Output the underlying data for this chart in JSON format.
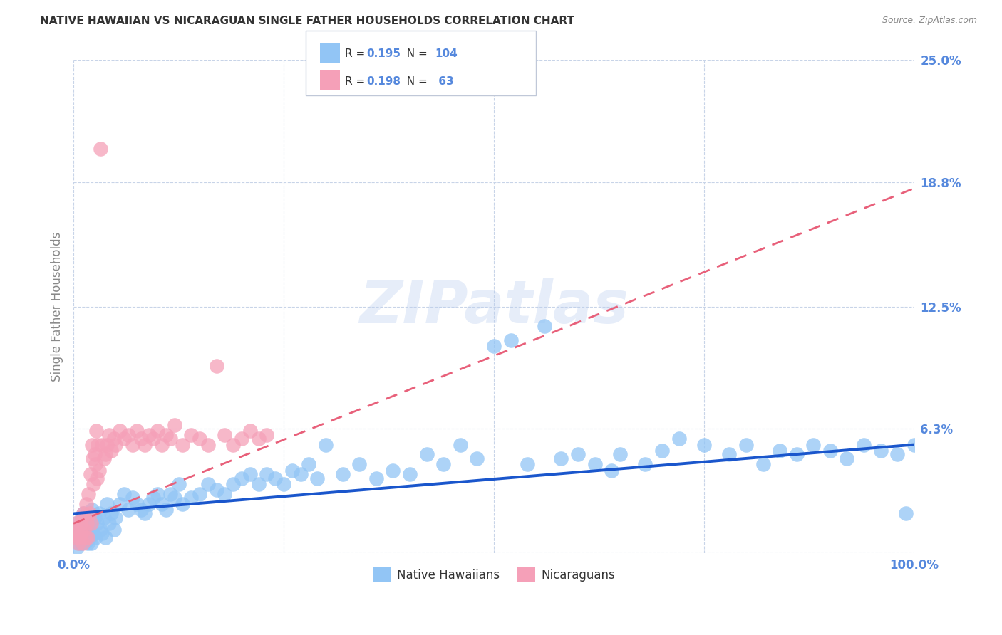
{
  "title": "NATIVE HAWAIIAN VS NICARAGUAN SINGLE FATHER HOUSEHOLDS CORRELATION CHART",
  "source": "Source: ZipAtlas.com",
  "ylabel": "Single Father Households",
  "watermark": "ZIPatlas",
  "xlim": [
    0.0,
    100.0
  ],
  "ylim": [
    0.0,
    25.0
  ],
  "ytick_vals": [
    0.0,
    6.3,
    12.5,
    18.8,
    25.0
  ],
  "ytick_labels": [
    "0%",
    "6.3%",
    "12.5%",
    "18.8%",
    "25.0%"
  ],
  "xtick_vals": [
    0.0,
    100.0
  ],
  "xtick_labels": [
    "0.0%",
    "100.0%"
  ],
  "native_hawaiian_color": "#92c5f5",
  "nicaraguan_color": "#f5a0b8",
  "trend_blue_color": "#1a56cc",
  "trend_pink_color": "#e8607a",
  "background_color": "#ffffff",
  "grid_color": "#c8d4e8",
  "title_color": "#333333",
  "source_color": "#888888",
  "axis_label_color": "#888888",
  "tick_color": "#5588dd",
  "native_hawaiian_x": [
    0.3,
    0.5,
    0.6,
    0.8,
    0.9,
    1.0,
    1.1,
    1.2,
    1.3,
    1.4,
    1.5,
    1.6,
    1.7,
    1.8,
    1.9,
    2.0,
    2.1,
    2.2,
    2.4,
    2.5,
    2.6,
    2.8,
    3.0,
    3.2,
    3.4,
    3.6,
    3.8,
    4.0,
    4.2,
    4.5,
    4.8,
    5.0,
    5.5,
    6.0,
    6.5,
    7.0,
    7.5,
    8.0,
    8.5,
    9.0,
    9.5,
    10.0,
    10.5,
    11.0,
    11.5,
    12.0,
    12.5,
    13.0,
    14.0,
    15.0,
    16.0,
    17.0,
    18.0,
    19.0,
    20.0,
    21.0,
    22.0,
    23.0,
    24.0,
    25.0,
    26.0,
    27.0,
    28.0,
    29.0,
    30.0,
    32.0,
    34.0,
    36.0,
    38.0,
    40.0,
    42.0,
    44.0,
    46.0,
    48.0,
    50.0,
    52.0,
    54.0,
    56.0,
    58.0,
    60.0,
    62.0,
    64.0,
    65.0,
    68.0,
    70.0,
    72.0,
    75.0,
    78.0,
    80.0,
    82.0,
    84.0,
    86.0,
    88.0,
    90.0,
    92.0,
    94.0,
    96.0,
    98.0,
    99.0,
    100.0,
    0.4,
    0.7,
    1.05,
    1.55
  ],
  "native_hawaiian_y": [
    1.5,
    1.0,
    0.8,
    1.2,
    0.5,
    1.8,
    1.0,
    2.0,
    0.8,
    1.5,
    0.6,
    1.0,
    0.5,
    1.2,
    0.8,
    1.5,
    0.5,
    2.2,
    1.0,
    1.8,
    0.8,
    1.5,
    2.0,
    1.2,
    1.0,
    1.8,
    0.8,
    2.5,
    1.5,
    2.0,
    1.2,
    1.8,
    2.5,
    3.0,
    2.2,
    2.8,
    2.5,
    2.2,
    2.0,
    2.5,
    2.8,
    3.0,
    2.5,
    2.2,
    3.0,
    2.8,
    3.5,
    2.5,
    2.8,
    3.0,
    3.5,
    3.2,
    3.0,
    3.5,
    3.8,
    4.0,
    3.5,
    4.0,
    3.8,
    3.5,
    4.2,
    4.0,
    4.5,
    3.8,
    5.5,
    4.0,
    4.5,
    3.8,
    4.2,
    4.0,
    5.0,
    4.5,
    5.5,
    4.8,
    10.5,
    10.8,
    4.5,
    11.5,
    4.8,
    5.0,
    4.5,
    4.2,
    5.0,
    4.5,
    5.2,
    5.8,
    5.5,
    5.0,
    5.5,
    4.5,
    5.2,
    5.0,
    5.5,
    5.2,
    4.8,
    5.5,
    5.2,
    5.0,
    2.0,
    5.5,
    0.3,
    0.5,
    0.8,
    0.6
  ],
  "nicaraguan_x": [
    0.2,
    0.3,
    0.4,
    0.5,
    0.6,
    0.7,
    0.8,
    0.9,
    1.0,
    1.1,
    1.2,
    1.3,
    1.4,
    1.5,
    1.6,
    1.7,
    1.8,
    1.9,
    2.0,
    2.1,
    2.2,
    2.3,
    2.4,
    2.5,
    2.6,
    2.7,
    2.8,
    2.9,
    3.0,
    3.2,
    3.4,
    3.6,
    3.8,
    4.0,
    4.2,
    4.5,
    4.8,
    5.0,
    5.5,
    6.0,
    6.5,
    7.0,
    7.5,
    8.0,
    8.5,
    9.0,
    9.5,
    10.0,
    10.5,
    11.0,
    11.5,
    12.0,
    13.0,
    14.0,
    15.0,
    16.0,
    17.0,
    18.0,
    19.0,
    20.0,
    21.0,
    22.0,
    23.0
  ],
  "nicaraguan_y": [
    1.5,
    0.8,
    1.2,
    1.0,
    0.5,
    0.8,
    1.5,
    1.0,
    1.8,
    0.5,
    2.0,
    1.2,
    0.8,
    2.5,
    1.5,
    0.8,
    3.0,
    2.0,
    4.0,
    1.5,
    5.5,
    4.8,
    3.5,
    5.0,
    4.5,
    6.2,
    3.8,
    5.5,
    4.2,
    20.5,
    5.5,
    4.8,
    5.0,
    5.5,
    6.0,
    5.2,
    5.8,
    5.5,
    6.2,
    5.8,
    6.0,
    5.5,
    6.2,
    5.8,
    5.5,
    6.0,
    5.8,
    6.2,
    5.5,
    6.0,
    5.8,
    6.5,
    5.5,
    6.0,
    5.8,
    5.5,
    9.5,
    6.0,
    5.5,
    5.8,
    6.2,
    5.8,
    6.0
  ],
  "legend_nh_r": "0.195",
  "legend_nh_n": "104",
  "legend_ni_r": "0.198",
  "legend_ni_n": "63"
}
